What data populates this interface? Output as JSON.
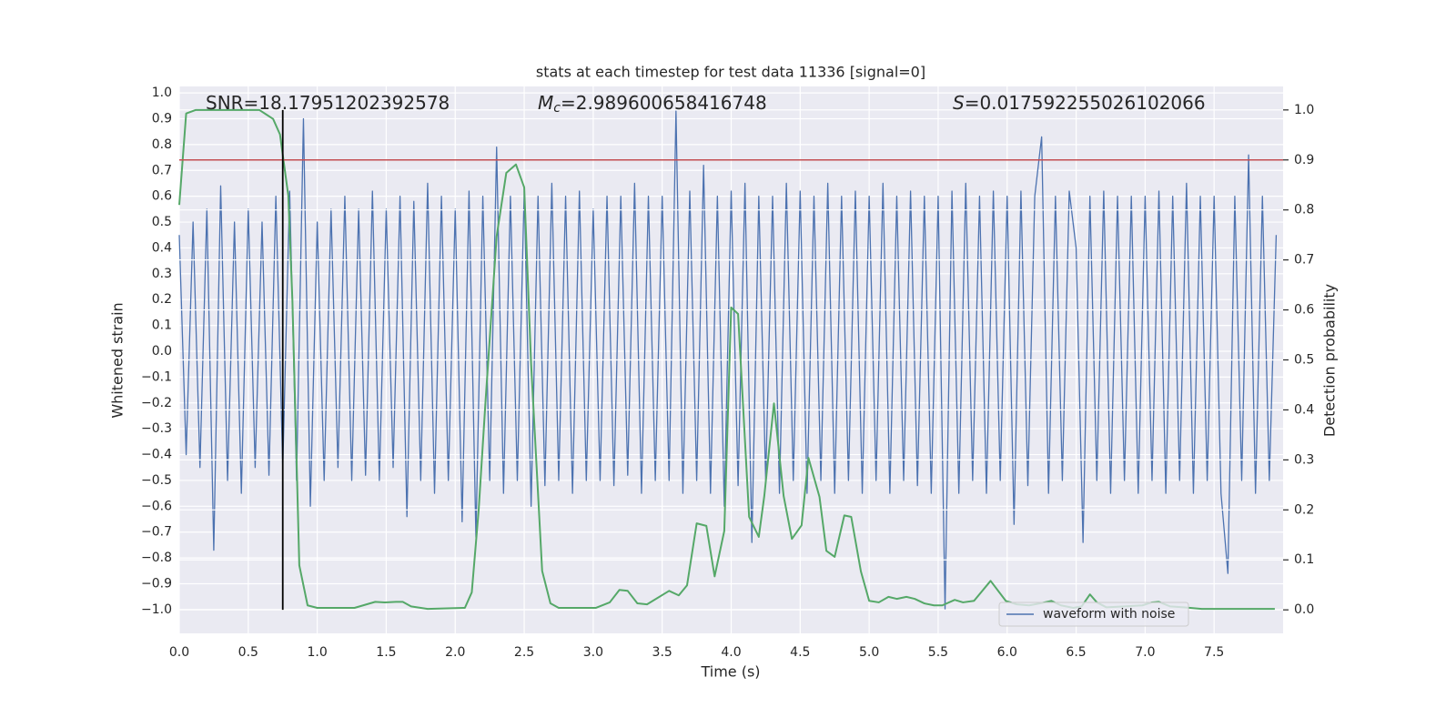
{
  "chart_data": {
    "type": "line",
    "title": "stats at each timestep for test data 11336 [signal=0]",
    "xlabel": "Time (s)",
    "ylabel": "Whitened strain",
    "y2label": "Detection probability",
    "grid": true,
    "legend": "lower right",
    "xlim": [
      0,
      8.0
    ],
    "xticks": [
      {
        "value": 0,
        "label": "0.0"
      },
      0.5,
      {
        "value": 1,
        "label": "1.0"
      },
      1.5,
      {
        "value": 2,
        "label": "2.0"
      },
      2.5,
      {
        "value": 3,
        "label": "3.0"
      },
      3.5,
      {
        "value": 4,
        "label": "4.0"
      },
      4.5,
      {
        "value": 5,
        "label": "5.0"
      },
      5.5,
      {
        "value": 6,
        "label": "6.0"
      },
      6.5,
      {
        "value": 7,
        "label": "7.0"
      },
      7.5
    ],
    "ylim": [
      -1.092,
      1.025
    ],
    "yticks": [
      {
        "value": -1,
        "label": "−1.0"
      },
      {
        "value": -0.9,
        "label": "−0.9"
      },
      {
        "value": -0.8,
        "label": "−0.8"
      },
      {
        "value": -0.7,
        "label": "−0.7"
      },
      {
        "value": -0.6,
        "label": "−0.6"
      },
      {
        "value": -0.5,
        "label": "−0.5"
      },
      {
        "value": -0.4,
        "label": "−0.4"
      },
      {
        "value": -0.3,
        "label": "−0.3"
      },
      {
        "value": -0.2,
        "label": "−0.2"
      },
      {
        "value": -0.1,
        "label": "−0.1"
      },
      {
        "value": 0,
        "label": "0.0"
      },
      0.1,
      0.2,
      0.3,
      0.4,
      0.5,
      0.6,
      0.7,
      0.8,
      0.9,
      {
        "value": 1,
        "label": "1.0"
      }
    ],
    "y2lim": [
      -0.047,
      1.047
    ],
    "y2ticks": [
      {
        "value": 0,
        "label": "0.0"
      },
      0.1,
      0.2,
      0.3,
      0.4,
      0.5,
      0.6,
      0.7,
      0.8,
      0.9,
      {
        "value": 1,
        "label": "1.0"
      }
    ],
    "series": [
      {
        "name": "waveform with noise",
        "color": "#4c72b0",
        "x": [
          0,
          0.05,
          0.1,
          0.15,
          0.2,
          0.25,
          0.3,
          0.35,
          0.4,
          0.45,
          0.5,
          0.55,
          0.6,
          0.65,
          0.7,
          0.75,
          0.8,
          0.85,
          0.9,
          0.95,
          1.0,
          1.05,
          1.1,
          1.15,
          1.2,
          1.25,
          1.3,
          1.35,
          1.4,
          1.45,
          1.5,
          1.55,
          1.6,
          1.65,
          1.7,
          1.75,
          1.8,
          1.85,
          1.9,
          1.95,
          2.0,
          2.05,
          2.1,
          2.15,
          2.2,
          2.25,
          2.3,
          2.35,
          2.4,
          2.45,
          2.5,
          2.55,
          2.6,
          2.65,
          2.7,
          2.75,
          2.8,
          2.85,
          2.9,
          2.95,
          3.0,
          3.05,
          3.1,
          3.15,
          3.2,
          3.25,
          3.3,
          3.35,
          3.4,
          3.45,
          3.5,
          3.55,
          3.6,
          3.65,
          3.7,
          3.75,
          3.8,
          3.85,
          3.9,
          3.95,
          4.0,
          4.05,
          4.1,
          4.15,
          4.2,
          4.25,
          4.3,
          4.35,
          4.4,
          4.45,
          4.5,
          4.55,
          4.6,
          4.65,
          4.7,
          4.75,
          4.8,
          4.85,
          4.9,
          4.95,
          5.0,
          5.05,
          5.1,
          5.15,
          5.2,
          5.25,
          5.3,
          5.35,
          5.4,
          5.45,
          5.5,
          5.55,
          5.6,
          5.65,
          5.7,
          5.75,
          5.8,
          5.85,
          5.9,
          5.95,
          6.0,
          6.05,
          6.1,
          6.15,
          6.2,
          6.25,
          6.3,
          6.35,
          6.4,
          6.45,
          6.5,
          6.55,
          6.6,
          6.65,
          6.7,
          6.75,
          6.8,
          6.85,
          6.9,
          6.95,
          7.0,
          7.05,
          7.1,
          7.15,
          7.2,
          7.25,
          7.3,
          7.35,
          7.4,
          7.45,
          7.5,
          7.55,
          7.6,
          7.65,
          7.7,
          7.75,
          7.8,
          7.85,
          7.9,
          7.95
        ],
        "values": [
          0.45,
          -0.4,
          0.5,
          -0.45,
          0.55,
          -0.77,
          0.64,
          -0.5,
          0.5,
          -0.55,
          0.55,
          -0.45,
          0.5,
          -0.48,
          0.6,
          -0.45,
          0.62,
          -0.5,
          0.9,
          -0.6,
          0.5,
          -0.5,
          0.55,
          -0.45,
          0.6,
          -0.5,
          0.55,
          -0.48,
          0.62,
          -0.5,
          0.55,
          -0.45,
          0.6,
          -0.64,
          0.58,
          -0.5,
          0.65,
          -0.55,
          0.6,
          -0.5,
          0.55,
          -0.66,
          0.62,
          -0.72,
          0.6,
          -0.5,
          0.79,
          -0.55,
          0.6,
          -0.5,
          0.62,
          -0.6,
          0.6,
          -0.52,
          0.65,
          -0.5,
          0.6,
          -0.55,
          0.62,
          -0.5,
          0.55,
          -0.5,
          0.6,
          -0.52,
          0.6,
          -0.48,
          0.65,
          -0.55,
          0.6,
          -0.5,
          0.6,
          -0.5,
          0.93,
          -0.55,
          0.62,
          -0.5,
          0.72,
          -0.55,
          0.6,
          -0.6,
          0.62,
          -0.52,
          0.65,
          -0.74,
          0.6,
          -0.5,
          0.6,
          -0.55,
          0.65,
          -0.5,
          0.62,
          -0.55,
          0.6,
          -0.5,
          0.65,
          -0.55,
          0.6,
          -0.5,
          0.62,
          -0.55,
          0.6,
          -0.5,
          0.65,
          -0.55,
          0.6,
          -0.5,
          0.62,
          -0.52,
          0.6,
          -0.55,
          0.6,
          -1.0,
          0.62,
          -0.55,
          0.65,
          -0.5,
          0.6,
          -0.55,
          0.62,
          -0.5,
          0.6,
          -0.67,
          0.62,
          -0.52,
          0.6,
          0.83,
          -0.55,
          0.6,
          -0.5,
          0.62,
          0.4,
          -0.74,
          0.6,
          -0.5,
          0.62,
          -0.55,
          0.6,
          -0.5,
          0.6,
          -0.55,
          0.6,
          -0.5,
          0.62,
          -0.55,
          0.6,
          -0.5,
          0.65,
          -0.55,
          0.6,
          -0.5,
          0.6,
          -0.55,
          -0.86,
          0.6,
          -0.5,
          0.76,
          -0.55,
          0.6,
          -0.5,
          0.45
        ]
      },
      {
        "color": "#55a868",
        "axis": "y2",
        "x": [
          0,
          0.05,
          0.12,
          0.58,
          0.63,
          0.68,
          0.73,
          0.79,
          0.82,
          0.87,
          0.93,
          1.0,
          1.27,
          1.42,
          1.49,
          1.57,
          1.62,
          1.68,
          1.8,
          2.07,
          2.12,
          2.17,
          2.22,
          2.3,
          2.37,
          2.44,
          2.5,
          2.55,
          2.63,
          2.69,
          2.75,
          3.02,
          3.12,
          3.19,
          3.25,
          3.32,
          3.39,
          3.55,
          3.62,
          3.68,
          3.75,
          3.82,
          3.88,
          3.95,
          4.0,
          4.05,
          4.13,
          4.2,
          4.24,
          4.31,
          4.38,
          4.44,
          4.51,
          4.56,
          4.64,
          4.69,
          4.75,
          4.82,
          4.87,
          4.94,
          5.0,
          5.07,
          5.14,
          5.2,
          5.27,
          5.33,
          5.4,
          5.47,
          5.53,
          5.62,
          5.68,
          5.76,
          5.88,
          5.99,
          6.07,
          6.16,
          6.24,
          6.32,
          6.39,
          6.48,
          6.54,
          6.6,
          6.65,
          6.72,
          6.85,
          6.98,
          7.05,
          7.1,
          7.18,
          7.28,
          7.41,
          7.68,
          7.81,
          7.94
        ],
        "values": [
          0.81,
          0.993,
          1.0,
          1.0,
          0.991,
          0.982,
          0.951,
          0.829,
          0.619,
          0.089,
          0.009,
          0.004,
          0.004,
          0.016,
          0.015,
          0.016,
          0.016,
          0.007,
          0.002,
          0.004,
          0.035,
          0.2,
          0.419,
          0.747,
          0.874,
          0.891,
          0.845,
          0.492,
          0.078,
          0.013,
          0.004,
          0.004,
          0.015,
          0.04,
          0.038,
          0.013,
          0.011,
          0.038,
          0.029,
          0.049,
          0.173,
          0.168,
          0.067,
          0.158,
          0.605,
          0.592,
          0.186,
          0.146,
          0.228,
          0.413,
          0.228,
          0.142,
          0.169,
          0.304,
          0.226,
          0.118,
          0.106,
          0.189,
          0.186,
          0.077,
          0.018,
          0.015,
          0.026,
          0.022,
          0.026,
          0.022,
          0.013,
          0.009,
          0.009,
          0.02,
          0.015,
          0.018,
          0.058,
          0.018,
          0.011,
          0.009,
          0.013,
          0.018,
          0.009,
          0.004,
          0.007,
          0.031,
          0.015,
          0.005,
          0.007,
          0.009,
          0.015,
          0.016,
          0.007,
          0.005,
          0.002,
          0.002,
          0.002,
          0.002
        ]
      }
    ],
    "hlines": [
      {
        "value": 0.9,
        "axis": "y2",
        "color": "#c44e52"
      }
    ],
    "vlines": [
      {
        "value": 0.75,
        "y2": [
          0,
          1
        ],
        "color": "#000000"
      }
    ],
    "annotations": [
      {
        "text": "SNR=18.17951202392578"
      },
      {
        "symbol": "M",
        "subscript": "c",
        "text": "=2.989600658416748"
      },
      {
        "symbol": "S",
        "text": "=0.017592255026102066"
      }
    ]
  }
}
